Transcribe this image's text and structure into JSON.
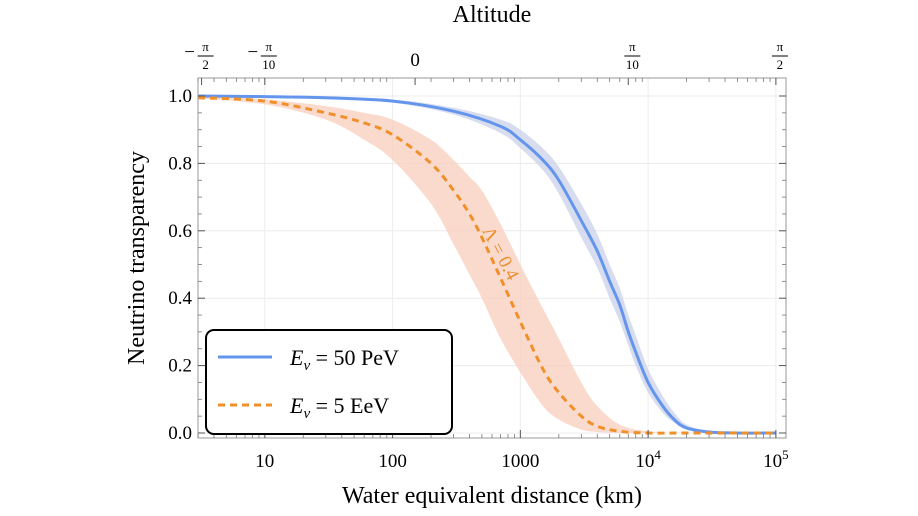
{
  "chart_data": {
    "type": "line",
    "xscale": "log",
    "xlim": [
      3,
      120000
    ],
    "ylim": [
      0,
      1
    ],
    "xlabel": "Water equivalent distance (km)",
    "ylabel": "Neutrino transparency",
    "top_axis_label": "Altitude",
    "x_ticks": [
      {
        "value": 10,
        "label": "10",
        "sup": ""
      },
      {
        "value": 100,
        "label": "100",
        "sup": ""
      },
      {
        "value": 1000,
        "label": "1000",
        "sup": ""
      },
      {
        "value": 10000,
        "label": "10",
        "sup": "4"
      },
      {
        "value": 100000,
        "label": "10",
        "sup": "5"
      }
    ],
    "y_ticks": [
      {
        "value": 0.0,
        "label": "0.0"
      },
      {
        "value": 0.2,
        "label": "0.2"
      },
      {
        "value": 0.4,
        "label": "0.4"
      },
      {
        "value": 0.6,
        "label": "0.6"
      },
      {
        "value": 0.8,
        "label": "0.8"
      },
      {
        "value": 1.0,
        "label": "1.0"
      }
    ],
    "top_ticks": [
      {
        "x": 3.2,
        "sign": "−",
        "num": "π",
        "den": "2",
        "plain": ""
      },
      {
        "x": 10,
        "sign": "−",
        "num": "π",
        "den": "10",
        "plain": ""
      },
      {
        "x": 150,
        "sign": "",
        "num": "",
        "den": "",
        "plain": "0"
      },
      {
        "x": 7000,
        "sign": "",
        "num": "π",
        "den": "10",
        "plain": ""
      },
      {
        "x": 100000,
        "sign": "",
        "num": "π",
        "den": "2",
        "plain": ""
      }
    ],
    "series": [
      {
        "name": "E_ν = 50 PeV",
        "legend_symbol": "E",
        "legend_sub": "ν",
        "legend_value": " = 50 PeV",
        "color": "#6495ED",
        "band_color": "#C9D2EA",
        "dash": false,
        "x": [
          3,
          10,
          30,
          100,
          300,
          700,
          1000,
          1500,
          2000,
          3000,
          4000,
          5000,
          6000,
          7000,
          8000,
          10000,
          13000,
          16000,
          20000,
          30000,
          50000,
          100000
        ],
        "y": [
          1.0,
          0.998,
          0.995,
          0.985,
          0.955,
          0.91,
          0.87,
          0.81,
          0.75,
          0.63,
          0.54,
          0.45,
          0.38,
          0.3,
          0.24,
          0.15,
          0.08,
          0.04,
          0.015,
          0.003,
          0.0,
          0.0
        ],
        "band_upper": [
          1.0,
          0.999,
          0.997,
          0.99,
          0.965,
          0.93,
          0.9,
          0.845,
          0.79,
          0.68,
          0.59,
          0.5,
          0.43,
          0.35,
          0.29,
          0.19,
          0.11,
          0.06,
          0.025,
          0.006,
          0.0,
          0.0
        ],
        "band_lower": [
          1.0,
          0.997,
          0.993,
          0.98,
          0.945,
          0.89,
          0.845,
          0.78,
          0.71,
          0.58,
          0.49,
          0.4,
          0.33,
          0.26,
          0.2,
          0.12,
          0.06,
          0.03,
          0.01,
          0.002,
          0.0,
          0.0
        ]
      },
      {
        "name": "E_ν = 5 EeV",
        "legend_symbol": "E",
        "legend_sub": "ν",
        "legend_value": " = 5 EeV",
        "color": "#F0902A",
        "band_color": "#F9CDBE",
        "dash": true,
        "x": [
          3,
          10,
          30,
          60,
          100,
          200,
          300,
          400,
          500,
          700,
          1000,
          1500,
          2000,
          3000,
          4000,
          6000,
          10000,
          20000,
          100000
        ],
        "y": [
          0.995,
          0.985,
          0.95,
          0.92,
          0.885,
          0.8,
          0.72,
          0.65,
          0.58,
          0.46,
          0.33,
          0.19,
          0.12,
          0.05,
          0.02,
          0.005,
          0.0,
          0.0,
          0.0
        ],
        "band_upper": [
          0.997,
          0.99,
          0.97,
          0.95,
          0.93,
          0.87,
          0.81,
          0.76,
          0.72,
          0.62,
          0.5,
          0.37,
          0.28,
          0.15,
          0.08,
          0.025,
          0.005,
          0.0,
          0.0
        ],
        "band_lower": [
          0.993,
          0.975,
          0.93,
          0.87,
          0.81,
          0.68,
          0.56,
          0.47,
          0.4,
          0.28,
          0.18,
          0.08,
          0.04,
          0.01,
          0.003,
          0.0,
          0.0,
          0.0,
          0.0
        ]
      }
    ],
    "annotation": {
      "text": "Λ = 0.4",
      "x": 500,
      "y": 0.6,
      "color": "#E8902F"
    },
    "legend_position": "bottom-left",
    "grid": true
  }
}
